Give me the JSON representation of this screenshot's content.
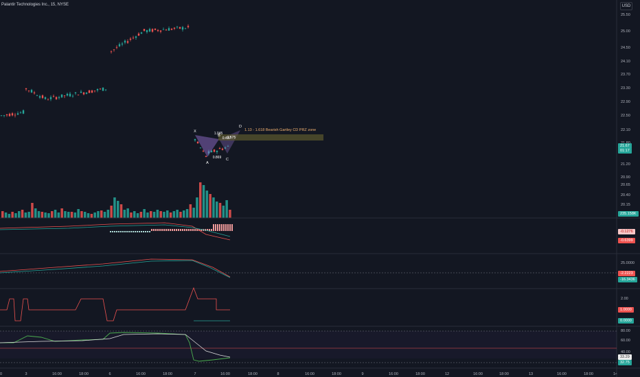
{
  "header": {
    "title": "Palantir Technologies Inc., 15, NYSE",
    "currency": "USD"
  },
  "price_axis": {
    "labels": [
      "25.50",
      "25.00",
      "24.50",
      "24.10",
      "23.70",
      "23.30",
      "22.90",
      "22.50",
      "22.10",
      "21.80",
      "21.20",
      "20.90",
      "20.65",
      "20.40",
      "20.15"
    ],
    "last_price": "21.67",
    "countdown": "01:17",
    "volume_label": "235.158K"
  },
  "indicator1": {
    "value_a": "-0.1276",
    "value_b": "-0.6399",
    "value_c": "-0.5424"
  },
  "indicator2": {
    "scale": "25.0000",
    "value_a": "-2.2223",
    "value_b": "-16.3436"
  },
  "indicator3": {
    "scale": "2.00",
    "value_a": "1.0000",
    "value_b": "0.0000"
  },
  "indicator4": {
    "scale": [
      "80.00",
      "60.00",
      "40.00"
    ],
    "value_a": "33.29",
    "value_b": "32.75"
  },
  "time_axis": [
    "00",
    "3",
    "16:00",
    "18:00",
    "6",
    "16:00",
    "18:00",
    "7",
    "16:00",
    "18:00",
    "8",
    "16:00",
    "18:00",
    "9",
    "16:00",
    "18:00",
    "12",
    "16:00",
    "18:00",
    "13",
    "16:00",
    "18:00",
    "14"
  ],
  "pattern": {
    "points": [
      "X",
      "A",
      "B",
      "C",
      "D"
    ],
    "ratios": [
      "0.497",
      "1.045",
      "1.575",
      "0.869"
    ],
    "zone_label": "1.13 - 1.618 Bearish Gartley CD PRZ zone"
  },
  "colors": {
    "up": "#26a69a",
    "down": "#ef5350",
    "bg": "#131722",
    "grid": "#1e222d",
    "zone": "#5d5a2e"
  }
}
